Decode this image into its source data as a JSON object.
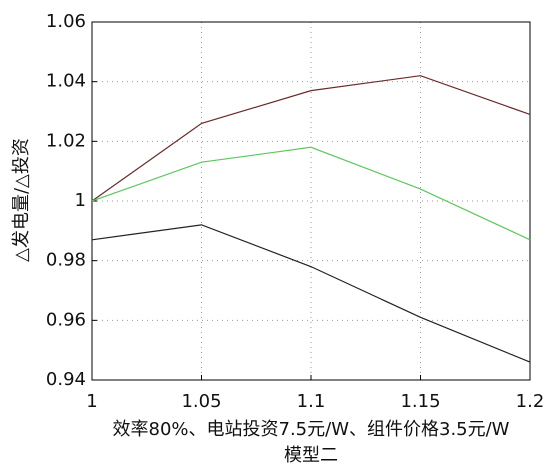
{
  "chart_data": {
    "type": "line",
    "xlabel": "效率80%、电站投资7.5元/W、组件价格3.5元/W",
    "caption": "模型二",
    "ylabel": "△发电量/△投资",
    "x": [
      1,
      1.05,
      1.1,
      1.15,
      1.2
    ],
    "series": [
      {
        "color": "#6b2a2a",
        "values": [
          1.0,
          1.026,
          1.037,
          1.042,
          1.029
        ]
      },
      {
        "color": "#5cc85c",
        "values": [
          1.0,
          1.013,
          1.018,
          1.004,
          0.987
        ]
      },
      {
        "color": "#222222",
        "values": [
          0.987,
          0.992,
          0.978,
          0.961,
          0.946
        ]
      }
    ],
    "xlim": [
      1,
      1.2
    ],
    "xticks": [
      1,
      1.05,
      1.1,
      1.15,
      1.2
    ],
    "ylim": [
      0.94,
      1.06
    ],
    "yticks": [
      0.94,
      0.96,
      0.98,
      1,
      1.02,
      1.04,
      1.06
    ],
    "grid": true
  }
}
